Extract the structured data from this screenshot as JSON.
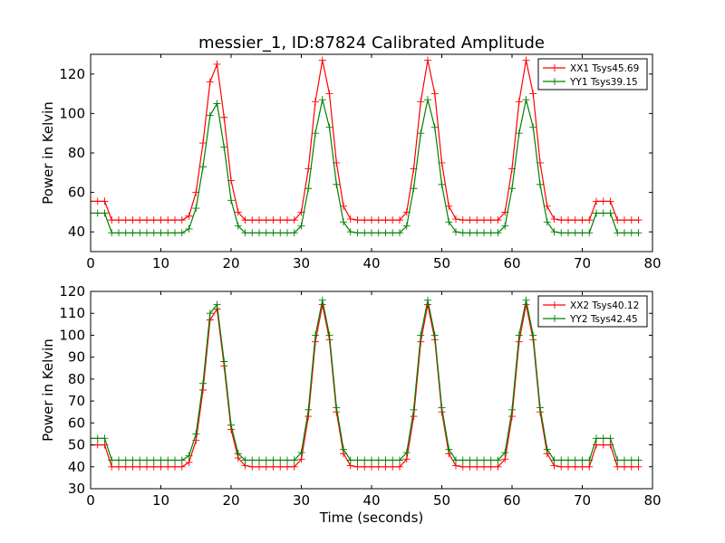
{
  "figure": {
    "title": "messier_1, ID:87824 Calibrated Amplitude",
    "xlabel": "Time (seconds)"
  },
  "chart_data": [
    {
      "type": "line",
      "title": "messier_1, ID:87824 Calibrated Amplitude",
      "xlabel": "",
      "ylabel": "Power in Kelvin",
      "xlim": [
        0,
        80
      ],
      "ylim": [
        30,
        130
      ],
      "xticks": [
        0,
        10,
        20,
        30,
        40,
        50,
        60,
        70,
        80
      ],
      "yticks": [
        40,
        60,
        80,
        100,
        120
      ],
      "grid": false,
      "legend_position": "top-right",
      "x": [
        0,
        1,
        2,
        3,
        4,
        5,
        6,
        7,
        8,
        9,
        10,
        11,
        12,
        13,
        14,
        15,
        16,
        17,
        18,
        19,
        20,
        21,
        22,
        23,
        24,
        25,
        26,
        27,
        28,
        29,
        30,
        31,
        32,
        33,
        34,
        35,
        36,
        37,
        38,
        39,
        40,
        41,
        42,
        43,
        44,
        45,
        46,
        47,
        48,
        49,
        50,
        51,
        52,
        53,
        54,
        55,
        56,
        57,
        58,
        59,
        60,
        61,
        62,
        63,
        64,
        65,
        66,
        67,
        68,
        69,
        70,
        71,
        72,
        73,
        74,
        75,
        76,
        77,
        78
      ],
      "series": [
        {
          "name": "XX1 Tsys45.69",
          "color": "#ff0000",
          "values": [
            55.5,
            55.5,
            55.5,
            46.0,
            46.0,
            46.0,
            46.0,
            46.0,
            46.0,
            46.0,
            46.0,
            46.0,
            46.0,
            46.0,
            48.0,
            60.0,
            85.0,
            116.0,
            125.0,
            98.0,
            66.0,
            50.0,
            46.0,
            46.0,
            46.0,
            46.0,
            46.0,
            46.0,
            46.0,
            46.0,
            50.0,
            72.0,
            106.0,
            127.0,
            110.0,
            75.0,
            53.0,
            46.5,
            46.0,
            46.0,
            46.0,
            46.0,
            46.0,
            46.0,
            46.0,
            50.0,
            72.0,
            106.0,
            127.0,
            110.0,
            75.0,
            53.0,
            46.5,
            46.0,
            46.0,
            46.0,
            46.0,
            46.0,
            46.0,
            50.0,
            72.0,
            106.0,
            127.0,
            110.0,
            75.0,
            53.0,
            46.5,
            46.0,
            46.0,
            46.0,
            46.0,
            46.0,
            55.5,
            55.5,
            55.5,
            46.0,
            46.0,
            46.0,
            46.0
          ]
        },
        {
          "name": "YY1 Tsys39.15",
          "color": "#008000",
          "values": [
            49.5,
            49.5,
            49.5,
            39.5,
            39.5,
            39.5,
            39.5,
            39.5,
            39.5,
            39.5,
            39.5,
            39.5,
            39.5,
            39.5,
            41.5,
            52.0,
            73.0,
            99.0,
            105.0,
            83.0,
            56.0,
            43.0,
            39.5,
            39.5,
            39.5,
            39.5,
            39.5,
            39.5,
            39.5,
            39.5,
            43.0,
            62.0,
            90.0,
            107.0,
            93.0,
            64.0,
            45.0,
            40.0,
            39.5,
            39.5,
            39.5,
            39.5,
            39.5,
            39.5,
            39.5,
            43.0,
            62.0,
            90.0,
            107.0,
            93.0,
            64.0,
            45.0,
            40.0,
            39.5,
            39.5,
            39.5,
            39.5,
            39.5,
            39.5,
            43.0,
            62.0,
            90.0,
            107.0,
            93.0,
            64.0,
            45.0,
            40.0,
            39.5,
            39.5,
            39.5,
            39.5,
            39.5,
            49.5,
            49.5,
            49.5,
            39.5,
            39.5,
            39.5,
            39.5
          ]
        }
      ]
    },
    {
      "type": "line",
      "title": "",
      "xlabel": "Time (seconds)",
      "ylabel": "Power in Kelvin",
      "xlim": [
        0,
        80
      ],
      "ylim": [
        30,
        120
      ],
      "xticks": [
        0,
        10,
        20,
        30,
        40,
        50,
        60,
        70,
        80
      ],
      "yticks": [
        30,
        40,
        50,
        60,
        70,
        80,
        90,
        100,
        110,
        120
      ],
      "grid": false,
      "legend_position": "top-right",
      "x": [
        0,
        1,
        2,
        3,
        4,
        5,
        6,
        7,
        8,
        9,
        10,
        11,
        12,
        13,
        14,
        15,
        16,
        17,
        18,
        19,
        20,
        21,
        22,
        23,
        24,
        25,
        26,
        27,
        28,
        29,
        30,
        31,
        32,
        33,
        34,
        35,
        36,
        37,
        38,
        39,
        40,
        41,
        42,
        43,
        44,
        45,
        46,
        47,
        48,
        49,
        50,
        51,
        52,
        53,
        54,
        55,
        56,
        57,
        58,
        59,
        60,
        61,
        62,
        63,
        64,
        65,
        66,
        67,
        68,
        69,
        70,
        71,
        72,
        73,
        74,
        75,
        76,
        77,
        78
      ],
      "series": [
        {
          "name": "XX2 Tsys40.12",
          "color": "#ff0000",
          "values": [
            50.0,
            50.0,
            50.0,
            40.0,
            40.0,
            40.0,
            40.0,
            40.0,
            40.0,
            40.0,
            40.0,
            40.0,
            40.0,
            40.0,
            42.0,
            52.0,
            75.0,
            107.0,
            112.0,
            86.0,
            57.0,
            44.0,
            40.5,
            40.0,
            40.0,
            40.0,
            40.0,
            40.0,
            40.0,
            40.0,
            43.5,
            63.0,
            97.0,
            114.0,
            98.0,
            65.0,
            46.0,
            40.5,
            40.0,
            40.0,
            40.0,
            40.0,
            40.0,
            40.0,
            40.0,
            43.5,
            63.0,
            97.0,
            114.0,
            98.0,
            65.0,
            46.0,
            40.5,
            40.0,
            40.0,
            40.0,
            40.0,
            40.0,
            40.0,
            43.5,
            63.0,
            97.0,
            114.0,
            98.0,
            65.0,
            46.0,
            40.5,
            40.0,
            40.0,
            40.0,
            40.0,
            40.0,
            50.0,
            50.0,
            50.0,
            40.0,
            40.0,
            40.0,
            40.0
          ]
        },
        {
          "name": "YY2 Tsys42.45",
          "color": "#008000",
          "values": [
            53.0,
            53.0,
            53.0,
            43.0,
            43.0,
            43.0,
            43.0,
            43.0,
            43.0,
            43.0,
            43.0,
            43.0,
            43.0,
            43.0,
            45.0,
            55.0,
            78.0,
            110.0,
            114.0,
            88.0,
            59.0,
            46.0,
            43.0,
            43.0,
            43.0,
            43.0,
            43.0,
            43.0,
            43.0,
            43.0,
            46.5,
            66.0,
            100.0,
            116.0,
            100.0,
            67.0,
            48.0,
            43.0,
            43.0,
            43.0,
            43.0,
            43.0,
            43.0,
            43.0,
            43.0,
            46.5,
            66.0,
            100.0,
            116.0,
            100.0,
            67.0,
            48.0,
            43.0,
            43.0,
            43.0,
            43.0,
            43.0,
            43.0,
            43.0,
            46.5,
            66.0,
            100.0,
            116.0,
            100.0,
            67.0,
            48.0,
            43.0,
            43.0,
            43.0,
            43.0,
            43.0,
            43.0,
            53.0,
            53.0,
            53.0,
            43.0,
            43.0,
            43.0,
            43.0
          ]
        }
      ]
    }
  ]
}
